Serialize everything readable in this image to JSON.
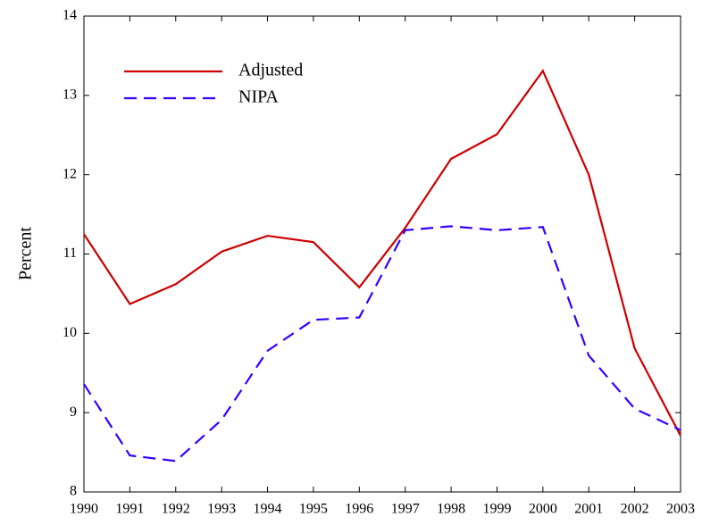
{
  "chart_data": {
    "type": "line",
    "y_label": "Percent",
    "x": [
      1990,
      1991,
      1992,
      1993,
      1994,
      1995,
      1996,
      1997,
      1998,
      1999,
      2000,
      2001,
      2002,
      2003
    ],
    "series": [
      {
        "name": "Adjusted",
        "color": "#cc0000",
        "linestyle": "solid",
        "values": [
          11.25,
          10.37,
          10.62,
          11.03,
          11.23,
          11.15,
          10.58,
          11.33,
          12.2,
          12.51,
          13.31,
          12.0,
          9.81,
          8.71
        ]
      },
      {
        "name": "NIPA",
        "color": "#3300ff",
        "linestyle": "dashed",
        "values": [
          9.36,
          8.46,
          8.39,
          8.91,
          9.78,
          10.17,
          10.2,
          11.3,
          11.35,
          11.3,
          11.34,
          9.72,
          9.05,
          8.78
        ]
      }
    ],
    "xlim": [
      1990,
      2003
    ],
    "xticks": [
      1990,
      1991,
      1992,
      1993,
      1994,
      1995,
      1996,
      1997,
      1998,
      1999,
      2000,
      2001,
      2002,
      2003
    ],
    "ylim": [
      8,
      14
    ],
    "yticks": [
      8,
      9,
      10,
      11,
      12,
      13,
      14
    ],
    "grid": false,
    "legend": "upper left"
  }
}
